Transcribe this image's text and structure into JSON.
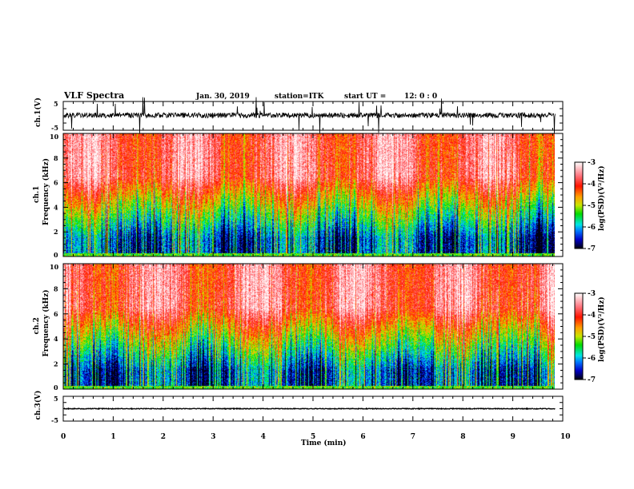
{
  "chart_data": {
    "type": "heatmap",
    "title": "VLF Spectra",
    "date": "Jan. 30, 2019",
    "station": "station=ITK",
    "start_ut": "start UT =",
    "start_time": "12: 0 : 0",
    "xlabel": "Time (min)",
    "xlim": [
      0,
      10
    ],
    "x_ticks": [
      "0",
      "1",
      "2",
      "3",
      "4",
      "5",
      "6",
      "7",
      "8",
      "9",
      "10"
    ],
    "data_end_min": 9.85,
    "panels": [
      {
        "name": "ch1-waveform",
        "type": "line",
        "ylabel": "ch.1(V)",
        "ylim": [
          -5,
          5
        ],
        "y_ticks": [
          "5",
          "-5"
        ],
        "baseline": 0.2
      },
      {
        "name": "ch1-spectrogram",
        "type": "heatmap",
        "ylabel_top": "ch.1",
        "ylabel": "Frequency (kHz)",
        "ylim": [
          0,
          10
        ],
        "y_ticks": [
          "0",
          "2",
          "4",
          "6",
          "8",
          "10"
        ],
        "colorbar": {
          "label": "log(PSD)(V²/Hz)",
          "range": [
            -7,
            -3
          ],
          "ticks": [
            "-3",
            "-4",
            "-5",
            "-6",
            "-7"
          ]
        }
      },
      {
        "name": "ch2-spectrogram",
        "type": "heatmap",
        "ylabel_top": "ch.2",
        "ylabel": "Frequency (kHz)",
        "ylim": [
          0,
          10
        ],
        "y_ticks": [
          "0",
          "2",
          "4",
          "6",
          "8",
          "10"
        ],
        "colorbar": {
          "label": "log(PSD)(V²/Hz)",
          "range": [
            -7,
            -3
          ],
          "ticks": [
            "-3",
            "-4",
            "-5",
            "-6",
            "-7"
          ]
        }
      },
      {
        "name": "ch3-waveform",
        "type": "line",
        "ylabel": "ch.3(V)",
        "ylim": [
          -5,
          5
        ],
        "y_ticks": [
          "5",
          "-5"
        ],
        "baseline": 0
      }
    ]
  }
}
